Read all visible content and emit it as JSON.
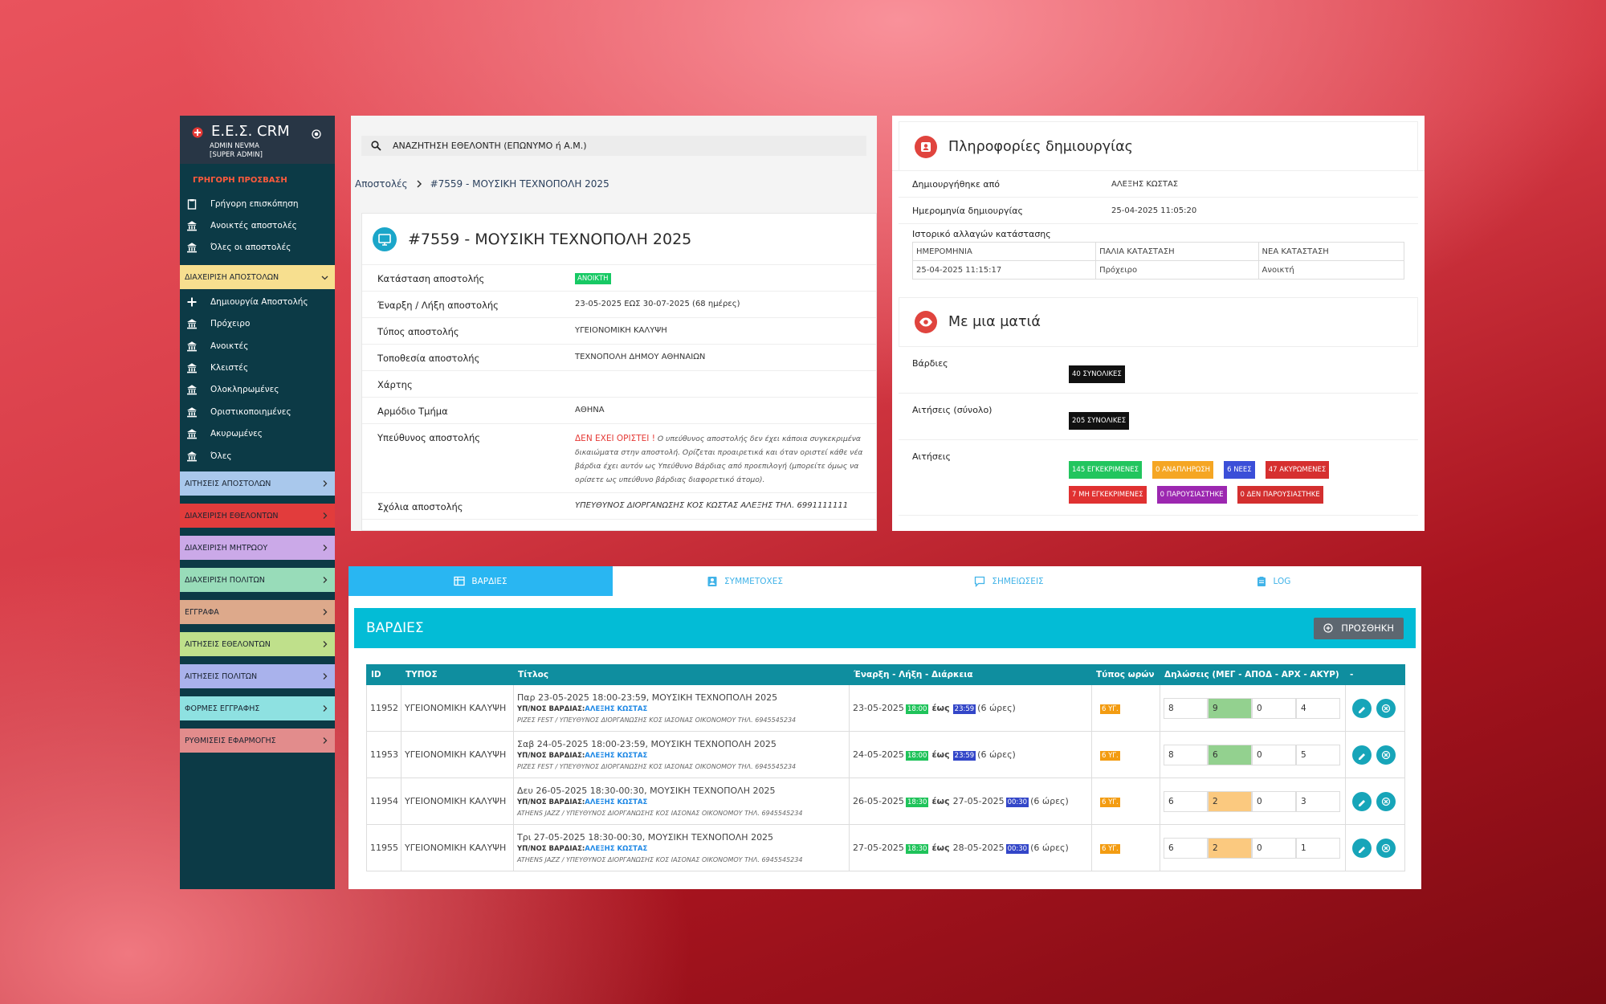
{
  "sidebar": {
    "brand": "Ε.Ε.Σ. CRM",
    "user": "ADMIN NEVMA",
    "role": "[SUPER ADMIN]",
    "quick_title": "ΓΡΗΓΟΡΗ ΠΡΟΣΒΑΣΗ",
    "quick_links": [
      "Γρήγορη επισκόπηση",
      "Ανοικτές αποστολές",
      "Όλες οι αποστολές"
    ],
    "missions_section": "ΔΙΑΧΕΙΡΙΣΗ ΑΠΟΣΤΟΛΩΝ",
    "missions_links": [
      "Δημιουργία Αποστολής",
      "Πρόχειρο",
      "Ανοικτές",
      "Κλειστές",
      "Ολοκληρωμένες",
      "Οριστικοποιημένες",
      "Ακυρωμένες",
      "Όλες"
    ],
    "sections": [
      "ΑΙΤΗΣΕΙΣ ΑΠΟΣΤΟΛΩΝ",
      "ΔΙΑΧΕΙΡΙΣΗ ΕΘΕΛΟΝΤΩΝ",
      "ΔΙΑΧΕΙΡΙΣΗ ΜΗΤΡΩΟΥ",
      "ΔΙΑΧΕΙΡΙΣΗ ΠΟΛΙΤΩΝ",
      "ΕΓΓΡΑΦΑ",
      "ΑΙΤΗΣΕΙΣ ΕΘΕΛΟΝΤΩΝ",
      "ΑΙΤΗΣΕΙΣ ΠΟΛΙΤΩΝ",
      "ΦΟΡΜΕΣ ΕΓΓΡΑΦΗΣ",
      "ΡΥΘΜΙΣΕΙΣ ΕΦΑΡΜΟΓΗΣ"
    ]
  },
  "search": {
    "placeholder": "ΑΝΑΖΗΤΗΣΗ ΕΘΕΛΟΝΤΗ (ΕΠΩΝΥΜΟ ή Α.Μ.)"
  },
  "breadcrumb": {
    "root": "Αποστολές",
    "current": "#7559 - ΜΟΥΣΙΚΗ ΤΕΧΝΟΠΟΛΗ 2025"
  },
  "mission": {
    "title": "#7559 - ΜΟΥΣΙΚΗ ΤΕΧΝΟΠΟΛΗ 2025",
    "rows": [
      {
        "label": "Κατάσταση αποστολής",
        "badge": "ΑΝΟΙΚΤΗ"
      },
      {
        "label": "Έναρξη / Λήξη αποστολής",
        "value": "23-05-2025 ΕΩΣ 30-07-2025 (68 ημέρες)"
      },
      {
        "label": "Τύπος αποστολής",
        "value": "ΥΓΕΙΟΝΟΜΙΚΗ ΚΑΛΥΨΗ"
      },
      {
        "label": "Τοποθεσία αποστολής",
        "value": "ΤΕΧΝΟΠΟΛΗ ΔΗΜΟΥ ΑΘΗΝΑΙΩΝ"
      },
      {
        "label": "Χάρτης"
      },
      {
        "label": "Αρμόδιο Τμήμα",
        "value": "ΑΘΗΝΑ"
      },
      {
        "label": "Υπεύθυνος αποστολής",
        "warning": "ΔΕΝ ΕΧΕΙ ΟΡΙΣΤΕΙ !",
        "note": "Ο υπεύθυνος αποστολής δεν έχει κάποια συγκεκριμένα δικαιώματα στην αποστολή. Ορίζεται προαιρετικά και όταν οριστεί κάθε νέα βάρδια έχει αυτόν ως Υπεύθυνο Βάρδιας από προεπιλογή (μπορείτε όμως να ορίσετε ως υπεύθυνο βάρδιας διαφορετικό άτομο)."
      },
      {
        "label": "Σχόλια αποστολής",
        "comment": "ΥΠΕΥΘΥΝΟΣ ΔΙΟΡΓΑΝΩΣΗΣ ΚΟΣ ΚΩΣΤΑΣ ΑΛΕΞΗΣ ΤΗΛ. 6991111111"
      }
    ]
  },
  "info": {
    "title": "Πληροφορίες δημιουργίας",
    "rows": [
      {
        "label": "Δημιουργήθηκε από",
        "value": "ΑΛΕΞΗΣ ΚΩΣΤΑΣ"
      },
      {
        "label": "Ημερομηνία δημιουργίας",
        "value": "25-04-2025 11:05:20"
      }
    ],
    "history_label": "Ιστορικό αλλαγών κατάστασης",
    "history": {
      "headers": [
        "ΗΜΕΡΟΜΗΝΙΑ",
        "ΠΑΛΙΑ ΚΑΤΑΣΤΑΣΗ",
        "ΝΕΑ ΚΑΤΑΣΤΑΣΗ"
      ],
      "rows": [
        [
          "25-04-2025 11:15:17",
          "Πρόχειρο",
          "Ανοικτή"
        ]
      ]
    }
  },
  "glance": {
    "title": "Με μια ματιά",
    "rows": [
      {
        "label": "Βάρδιες",
        "badges": [
          {
            "text": "40 ΣΥΝΟΛΙΚΕΣ",
            "color": "#111111"
          }
        ]
      },
      {
        "label": "Αιτήσεις (σύνολο)",
        "badges": [
          {
            "text": "205 ΣΥΝΟΛΙΚΕΣ",
            "color": "#111111"
          }
        ]
      },
      {
        "label": "Αιτήσεις",
        "badges": [
          {
            "text": "145 ΕΓΚΕΚΡΙΜΕΝΕΣ",
            "color": "#22c55e"
          },
          {
            "text": "0 ΑΝΑΠΛΗΡΩΣΗ",
            "color": "#f5a623"
          },
          {
            "text": "6 ΝΕΕΣ",
            "color": "#3b4fd8"
          },
          {
            "text": "47 ΑΚΥΡΩΜΕΝΕΣ",
            "color": "#d62f2f"
          },
          {
            "text": "7 ΜΗ ΕΓΚΕΚΡΙΜΕΝΕΣ",
            "color": "#e03131"
          },
          {
            "text": "0 ΠΑΡΟΥΣΙΑΣΤΗΚΕ",
            "color": "#9c27b0"
          },
          {
            "text": "0 ΔΕΝ ΠΑΡΟΥΣΙΑΣΤΗΚΕ",
            "color": "#d32f2f"
          }
        ]
      }
    ]
  },
  "shifts": {
    "tabs": [
      "ΒΑΡΔΙΕΣ",
      "ΣΥΜΜΕΤΟΧΕΣ",
      "ΣΗΜΕΙΩΣΕΙΣ",
      "LOG"
    ],
    "header": "ΒΑΡΔΙΕΣ",
    "add_button": "ΠΡΟΣΘΗΚΗ",
    "columns": [
      "ID",
      "ΤΥΠΟΣ",
      "Τίτλος",
      "Έναρξη - Λήξη - Διάρκεια",
      "Τύπος ωρών",
      "Δηλώσεις (ΜΕΓ - ΑΠΟΔ - ΑΡΧ - ΑΚΥΡ)",
      "-"
    ],
    "rows": [
      {
        "id": "11952",
        "type": "ΥΓΕΙΟΝΟΜΙΚΗ ΚΑΛΥΨΗ",
        "title": "Παρ 23-05-2025 18:00-23:59, ΜΟΥΣΙΚΗ ΤΕΧΝΟΠΟΛΗ 2025",
        "leader_label": "ΥΠ/ΝΟΣ ΒΑΡΔΙΑΣ:",
        "leader": "ΑΛΕΞΗΣ ΚΩΣΤΑΣ",
        "note": "ΡΙΖΕΣ FEST / ΥΠΕΥΘΥΝΟΣ ΔΙΟΡΓΑΝΩΣΗΣ ΚΟΣ ΙΑΣΟΝΑΣ ΟΙΚΟΝΟΜΟΥ ΤΗΛ. 6945545234",
        "start_date": "23-05-2025",
        "start_time": "18:00",
        "until": "έως",
        "end_time": "23:59",
        "duration": "(6 ώρες)",
        "hours_type": "6 ΥΓ.",
        "counts": [
          8,
          9,
          0,
          4
        ],
        "apod_color": "#93d18f"
      },
      {
        "id": "11953",
        "type": "ΥΓΕΙΟΝΟΜΙΚΗ ΚΑΛΥΨΗ",
        "title": "Σαβ 24-05-2025 18:00-23:59, ΜΟΥΣΙΚΗ ΤΕΧΝΟΠΟΛΗ 2025",
        "leader_label": "ΥΠ/ΝΟΣ ΒΑΡΔΙΑΣ:",
        "leader": "ΑΛΕΞΗΣ ΚΩΣΤΑΣ",
        "note": "ΡΙΖΕΣ FEST / ΥΠΕΥΘΥΝΟΣ ΔΙΟΡΓΑΝΩΣΗΣ ΚΟΣ ΙΑΣΟΝΑΣ ΟΙΚΟΝΟΜΟΥ ΤΗΛ. 6945545234",
        "start_date": "24-05-2025",
        "start_time": "18:00",
        "until": "έως",
        "end_time": "23:59",
        "duration": "(6 ώρες)",
        "hours_type": "6 ΥΓ.",
        "counts": [
          8,
          6,
          0,
          5
        ],
        "apod_color": "#93d18f"
      },
      {
        "id": "11954",
        "type": "ΥΓΕΙΟΝΟΜΙΚΗ ΚΑΛΥΨΗ",
        "title": "Δευ 26-05-2025 18:30-00:30, ΜΟΥΣΙΚΗ ΤΕΧΝΟΠΟΛΗ 2025",
        "leader_label": "ΥΠ/ΝΟΣ ΒΑΡΔΙΑΣ:",
        "leader": "ΑΛΕΞΗΣ ΚΩΣΤΑΣ",
        "note": "ATHENS JAZZ / ΥΠΕΥΘΥΝΟΣ ΔΙΟΡΓΑΝΩΣΗΣ ΚΟΣ ΙΑΣΟΝΑΣ ΟΙΚΟΝΟΜΟΥ ΤΗΛ. 6945545234",
        "start_date": "26-05-2025",
        "start_time": "18:30",
        "until": "έως",
        "end_date": "27-05-2025",
        "end_time": "00:30",
        "duration": "(6 ώρες)",
        "hours_type": "6 ΥΓ.",
        "counts": [
          6,
          2,
          0,
          3
        ],
        "apod_color": "#fbc97f"
      },
      {
        "id": "11955",
        "type": "ΥΓΕΙΟΝΟΜΙΚΗ ΚΑΛΥΨΗ",
        "title": "Τρι 27-05-2025 18:30-00:30, ΜΟΥΣΙΚΗ ΤΕΧΝΟΠΟΛΗ 2025",
        "leader_label": "ΥΠ/ΝΟΣ ΒΑΡΔΙΑΣ:",
        "leader": "ΑΛΕΞΗΣ ΚΩΣΤΑΣ",
        "note": "ATHENS JAZZ / ΥΠΕΥΘΥΝΟΣ ΔΙΟΡΓΑΝΩΣΗΣ ΚΟΣ ΙΑΣΟΝΑΣ ΟΙΚΟΝΟΜΟΥ ΤΗΛ. 6945545234",
        "start_date": "27-05-2025",
        "start_time": "18:30",
        "until": "έως",
        "end_date": "28-05-2025",
        "end_time": "00:30",
        "duration": "(6 ώρες)",
        "hours_type": "6 ΥΓ.",
        "counts": [
          6,
          2,
          0,
          1
        ],
        "apod_color": "#fbc97f"
      }
    ]
  }
}
